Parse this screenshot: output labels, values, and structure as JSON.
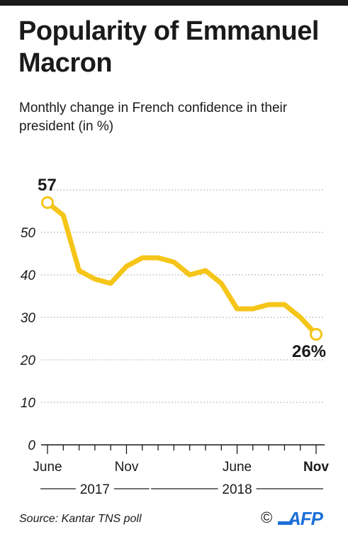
{
  "title": "Popularity of Emmanuel Macron",
  "subtitle": "Monthly change in French confidence in their president (in %)",
  "source": "Source: Kantar TNS poll",
  "copyright": "©",
  "logo_text": "AFP",
  "colors": {
    "line": "#f5c518",
    "text": "#1a1a1a",
    "grid": "#9a9a9a",
    "point_fill": "#ffffff"
  },
  "chart_data": {
    "type": "line",
    "title": "Popularity of Emmanuel Macron",
    "subtitle": "Monthly change in French confidence in their president (in %)",
    "ylim": [
      0,
      60
    ],
    "yticks": [
      0,
      10,
      20,
      30,
      40,
      50
    ],
    "grid": true,
    "x": [
      "2017-06",
      "2017-07",
      "2017-08",
      "2017-09",
      "2017-10",
      "2017-11",
      "2017-12",
      "2018-01",
      "2018-02",
      "2018-03",
      "2018-04",
      "2018-05",
      "2018-06",
      "2018-07",
      "2018-08",
      "2018-09",
      "2018-10",
      "2018-11"
    ],
    "values": [
      57,
      54,
      41,
      39,
      38,
      42,
      44,
      44,
      43,
      40,
      41,
      38,
      32,
      32,
      33,
      33,
      30,
      26
    ],
    "x_tick_labels": [
      {
        "index": 0,
        "label": "June",
        "bold": false
      },
      {
        "index": 5,
        "label": "Nov",
        "bold": false
      },
      {
        "index": 12,
        "label": "June",
        "bold": false
      },
      {
        "index": 17,
        "label": "Nov",
        "bold": true
      }
    ],
    "year_groups": [
      {
        "label": "2017",
        "start": 0,
        "end": 6
      },
      {
        "label": "2018",
        "start": 7,
        "end": 17
      }
    ],
    "annotations": [
      {
        "index": 0,
        "label": "57"
      },
      {
        "index": 17,
        "label": "26%"
      }
    ]
  }
}
